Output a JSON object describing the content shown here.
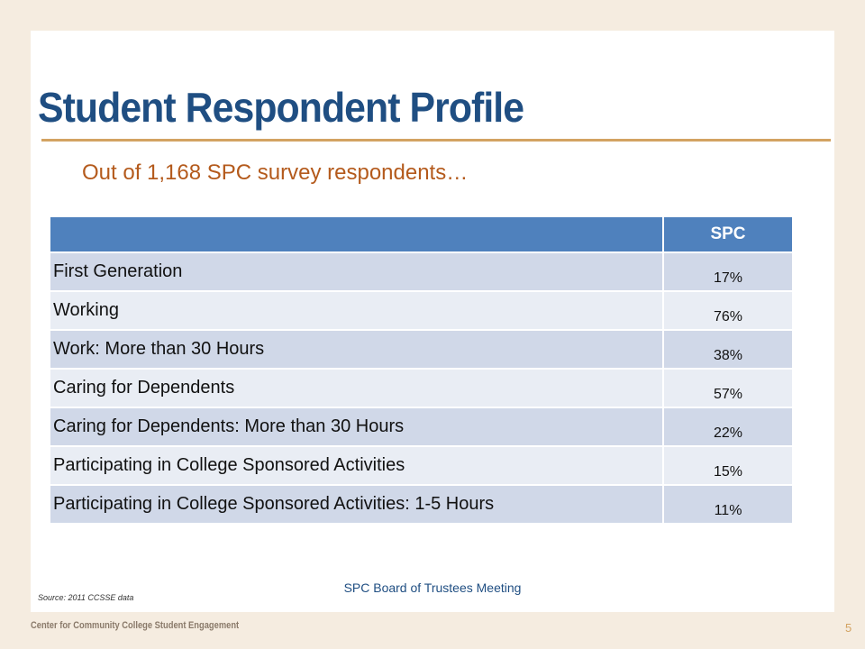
{
  "slide": {
    "title": "Student Respondent Profile",
    "subtitle": "Out of 1,168 SPC survey respondents…",
    "footer": "SPC Board of Trustees Meeting",
    "source": "Source: 2011 CCSSE data",
    "organization": "Center for Community College Student Engagement",
    "page_number": "5"
  },
  "table": {
    "headers": [
      "",
      "SPC"
    ],
    "rows": [
      {
        "label": "First Generation",
        "value": "17%"
      },
      {
        "label": "Working",
        "value": "76%"
      },
      {
        "label": "Work: More than 30 Hours",
        "value": "38%"
      },
      {
        "label": "Caring for Dependents",
        "value": "57%"
      },
      {
        "label": "Caring for Dependents: More than 30 Hours",
        "value": "22%"
      },
      {
        "label": "Participating in College Sponsored Activities",
        "value": "15%"
      },
      {
        "label": "Participating in College Sponsored Activities: 1-5 Hours",
        "value": "11%"
      }
    ]
  },
  "colors": {
    "title": "#1f4e82",
    "subtitle": "#b45a1c",
    "rule": "#d3a362",
    "header_fill": "#4f81bd",
    "row_dark": "#d0d8e8",
    "row_light": "#e9edf4",
    "background": "#f5ece0"
  }
}
